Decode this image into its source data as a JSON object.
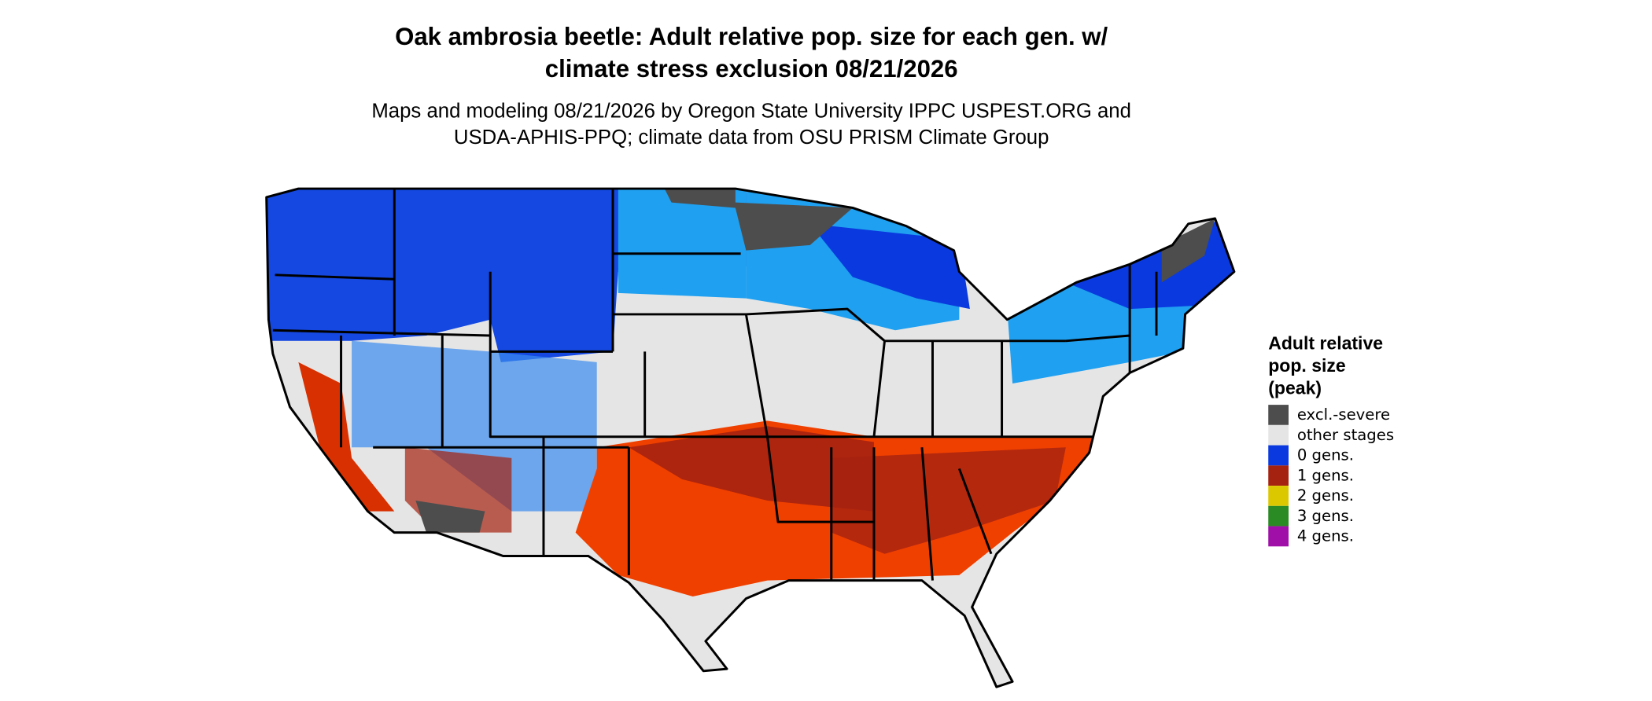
{
  "header": {
    "title_lines": [
      "Oak ambrosia beetle: Adult relative pop. size for each gen. w/",
      "climate stress exclusion 08/21/2026"
    ],
    "subtitle_lines": [
      "Maps and modeling 08/21/2026 by Oregon State University IPPC USPEST.ORG and",
      "USDA-APHIS-PPQ; climate data from OSU PRISM Climate Group"
    ]
  },
  "legend": {
    "title_lines": [
      "Adult relative",
      "pop. size",
      "(peak)"
    ],
    "items": [
      {
        "label": "excl.-severe",
        "color": "#4d4d4d"
      },
      {
        "label": "other stages",
        "color": "#e5e5e5"
      },
      {
        "label": "0 gens.",
        "color": "#0a3adf"
      },
      {
        "label": "1 gens.",
        "color": "#a52210"
      },
      {
        "label": "2 gens.",
        "color": "#dcc800"
      },
      {
        "label": "3 gens.",
        "color": "#2a8a23"
      },
      {
        "label": "4 gens.",
        "color": "#a010a8"
      }
    ]
  }
}
